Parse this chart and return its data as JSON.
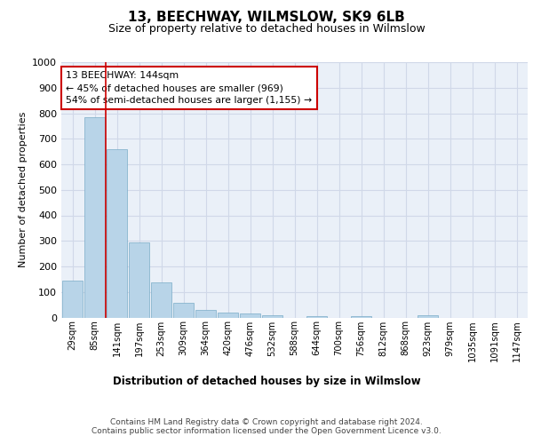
{
  "title1": "13, BEECHWAY, WILMSLOW, SK9 6LB",
  "title2": "Size of property relative to detached houses in Wilmslow",
  "xlabel": "Distribution of detached houses by size in Wilmslow",
  "ylabel": "Number of detached properties",
  "categories": [
    "29sqm",
    "85sqm",
    "141sqm",
    "197sqm",
    "253sqm",
    "309sqm",
    "364sqm",
    "420sqm",
    "476sqm",
    "532sqm",
    "588sqm",
    "644sqm",
    "700sqm",
    "756sqm",
    "812sqm",
    "868sqm",
    "923sqm",
    "979sqm",
    "1035sqm",
    "1091sqm",
    "1147sqm"
  ],
  "values": [
    145,
    783,
    660,
    295,
    137,
    57,
    29,
    18,
    15,
    8,
    0,
    5,
    0,
    6,
    0,
    0,
    8,
    0,
    0,
    0,
    0
  ],
  "bar_color": "#b8d4e8",
  "bar_edge_color": "#7aacc8",
  "vline_x": 2,
  "vline_color": "#cc0000",
  "annotation_text": "13 BEECHWAY: 144sqm\n← 45% of detached houses are smaller (969)\n54% of semi-detached houses are larger (1,155) →",
  "annotation_box_color": "#ffffff",
  "annotation_box_edge": "#cc0000",
  "grid_color": "#d0d8e8",
  "plot_bg_color": "#eaf0f8",
  "footer_text": "Contains HM Land Registry data © Crown copyright and database right 2024.\nContains public sector information licensed under the Open Government Licence v3.0.",
  "ylim": [
    0,
    1000
  ],
  "yticks": [
    0,
    100,
    200,
    300,
    400,
    500,
    600,
    700,
    800,
    900,
    1000
  ]
}
